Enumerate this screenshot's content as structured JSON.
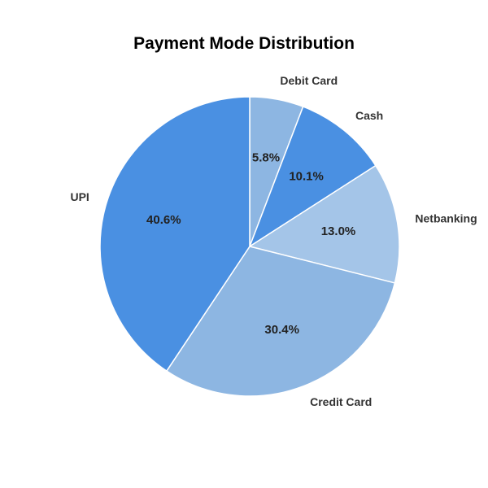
{
  "chart_data": {
    "type": "pie",
    "title": "Payment Mode Distribution",
    "start_angle_deg": 90,
    "direction": "clockwise",
    "slices": [
      {
        "label": "Debit Card",
        "value": 5.8,
        "pct_text": "5.8%",
        "color": "#8db6e2"
      },
      {
        "label": "Cash",
        "value": 10.1,
        "pct_text": "10.1%",
        "color": "#4a90e2"
      },
      {
        "label": "Netbanking",
        "value": 13.0,
        "pct_text": "13.0%",
        "color": "#a4c5e8"
      },
      {
        "label": "Credit Card",
        "value": 30.4,
        "pct_text": "30.4%",
        "color": "#8db6e2"
      },
      {
        "label": "UPI",
        "value": 40.6,
        "pct_text": "40.6%",
        "color": "#4a90e2"
      }
    ],
    "slice_edge_color": "#ffffff",
    "legend": "none"
  }
}
